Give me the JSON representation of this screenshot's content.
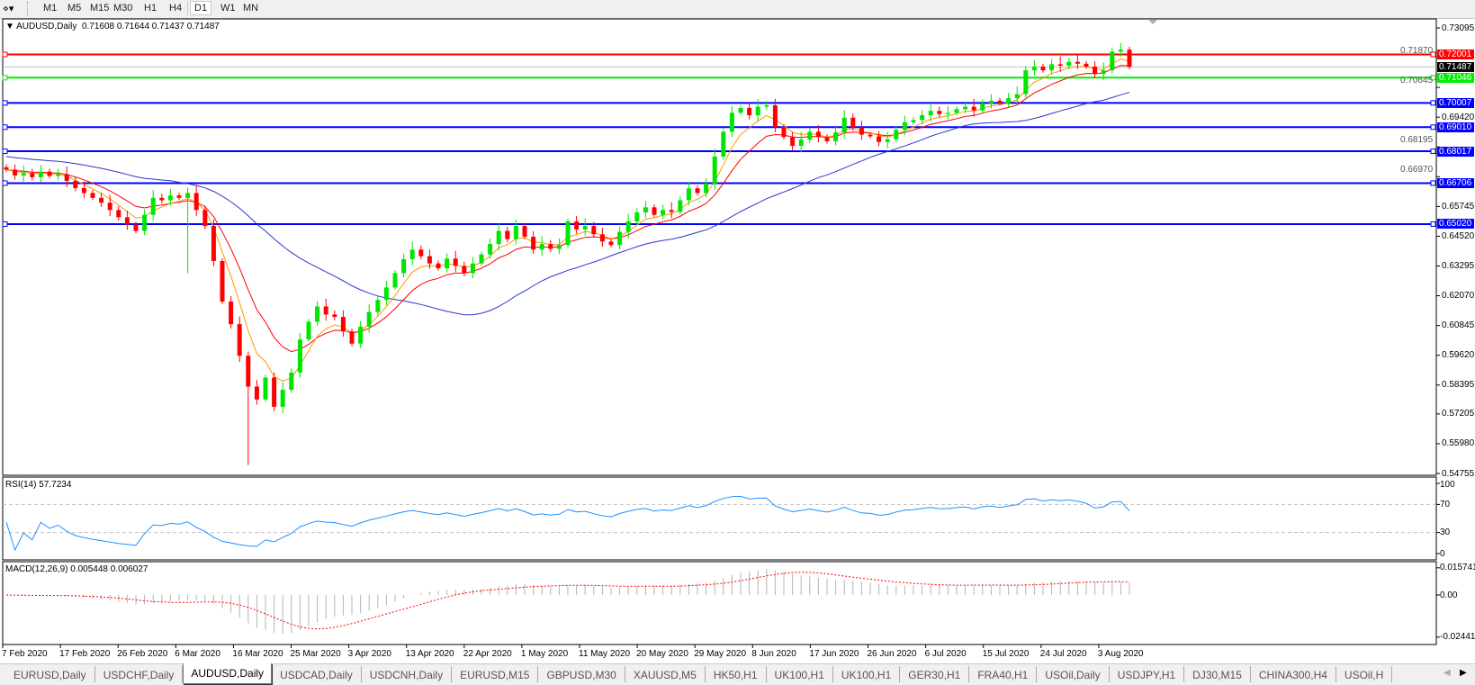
{
  "toolbar": {
    "timeframes": [
      "M1",
      "M5",
      "M15",
      "M30",
      "H1",
      "H4",
      "D1",
      "W1",
      "MN"
    ],
    "active_timeframe": "D1"
  },
  "chart": {
    "symbol_label": "AUDUSD,Daily",
    "ohlc_label": "0.71608 0.71644 0.71437 0.71487",
    "current_price": "0.71487",
    "price_ticks": [
      "0.73095",
      "0.71870",
      "0.70645",
      "0.69420",
      "0.68195",
      "0.66970",
      "0.65745",
      "0.64520",
      "0.63295",
      "0.62070",
      "0.60845",
      "0.59620",
      "0.58395",
      "0.57205",
      "0.55980",
      "0.54755"
    ],
    "horizontal_lines": [
      {
        "label": "0.72001",
        "value": 0.72001,
        "color": "#ff0000"
      },
      {
        "label": "0.71046",
        "value": 0.71046,
        "color": "#00ee00"
      },
      {
        "label": "0.70007",
        "value": 0.70007,
        "color": "#0000ff"
      },
      {
        "label": "0.69010",
        "value": 0.6901,
        "color": "#0000ff"
      },
      {
        "label": "0.68017",
        "value": 0.68017,
        "color": "#0000ff"
      },
      {
        "label": "0.66706",
        "value": 0.66706,
        "color": "#0000ff"
      },
      {
        "label": "0.65020",
        "value": 0.6502,
        "color": "#0000ff"
      }
    ],
    "date_labels": [
      "7 Feb 2020",
      "17 Feb 2020",
      "26 Feb 2020",
      "6 Mar 2020",
      "16 Mar 2020",
      "25 Mar 2020",
      "3 Apr 2020",
      "13 Apr 2020",
      "22 Apr 2020",
      "1 May 2020",
      "11 May 2020",
      "20 May 2020",
      "29 May 2020",
      "8 Jun 2020",
      "17 Jun 2020",
      "26 Jun 2020",
      "6 Jul 2020",
      "15 Jul 2020",
      "24 Jul 2020",
      "3 Aug 2020"
    ],
    "colors": {
      "bull": "#00e600",
      "bear": "#ff0000",
      "ma_fast": "#ff9900",
      "ma_mid": "#ff0000",
      "ma_slow": "#2a35d0",
      "rsi": "#1e90ff",
      "macd_hist": "#b4b4b4",
      "macd_signal": "#ff0000"
    }
  },
  "rsi": {
    "title": "RSI(14) 57.7234",
    "ticks": [
      "100",
      "70",
      "30",
      "0"
    ]
  },
  "macd": {
    "title": "MACD(12,26,9) 0.005448 0.006027",
    "ticks": [
      "0.015741",
      "0.00",
      "-0.024412"
    ]
  },
  "chart_data": {
    "type": "candlestick",
    "symbol": "AUDUSD",
    "timeframe": "Daily",
    "ylim": [
      0.54755,
      0.73095
    ],
    "closes": [
      0.6726,
      0.6702,
      0.6712,
      0.6695,
      0.6718,
      0.67,
      0.6707,
      0.668,
      0.665,
      0.663,
      0.661,
      0.659,
      0.656,
      0.653,
      0.65,
      0.6474,
      0.654,
      0.661,
      0.66,
      0.662,
      0.661,
      0.663,
      0.656,
      0.6494,
      0.635,
      0.6183,
      0.609,
      0.596,
      0.5833,
      0.578,
      0.587,
      0.575,
      0.582,
      0.5891,
      0.6027,
      0.61,
      0.6163,
      0.613,
      0.612,
      0.606,
      0.601,
      0.608,
      0.614,
      0.619,
      0.6241,
      0.63,
      0.6358,
      0.6397,
      0.637,
      0.634,
      0.632,
      0.636,
      0.633,
      0.63,
      0.634,
      0.6377,
      0.642,
      0.6474,
      0.644,
      0.6494,
      0.645,
      0.6397,
      0.642,
      0.64,
      0.6416,
      0.6513,
      0.648,
      0.6494,
      0.646,
      0.643,
      0.6416,
      0.647,
      0.6513,
      0.655,
      0.6571,
      0.654,
      0.656,
      0.6552,
      0.66,
      0.6649,
      0.663,
      0.6669,
      0.678,
      0.6882,
      0.696,
      0.698,
      0.695,
      0.6985,
      0.6991,
      0.6901,
      0.686,
      0.6824,
      0.685,
      0.6882,
      0.686,
      0.6843,
      0.688,
      0.694,
      0.69,
      0.687,
      0.6863,
      0.684,
      0.6851,
      0.689,
      0.6921,
      0.693,
      0.695,
      0.6968,
      0.6955,
      0.696,
      0.6975,
      0.6985,
      0.697,
      0.6999,
      0.701,
      0.7,
      0.702,
      0.7037,
      0.7135,
      0.715,
      0.7135,
      0.716,
      0.7154,
      0.717,
      0.7162,
      0.715,
      0.712,
      0.7135,
      0.7212,
      0.722,
      0.7149
    ],
    "low_overrides": [
      {
        "bar": 21,
        "low": 0.63
      },
      {
        "bar": 28,
        "low": 0.551
      }
    ],
    "indicators": [
      "Moving averages (fast, mid, slow)",
      "RSI(14)",
      "MACD(12,26,9)"
    ],
    "rsi_levels": [
      30,
      70
    ],
    "macd_ylim": [
      -0.024412,
      0.015741
    ]
  },
  "tabs": {
    "items": [
      "EURUSD,Daily",
      "USDCHF,Daily",
      "AUDUSD,Daily",
      "USDCAD,Daily",
      "USDCNH,Daily",
      "EURUSD,M15",
      "GBPUSD,M30",
      "XAUUSD,M5",
      "HK50,H1",
      "UK100,H1",
      "UK100,H1",
      "GER30,H1",
      "FRA40,H1",
      "USOil,Daily",
      "USDJPY,H1",
      "DJ30,M15",
      "CHINA300,H4",
      "USOil,H"
    ],
    "active": "AUDUSD,Daily"
  }
}
